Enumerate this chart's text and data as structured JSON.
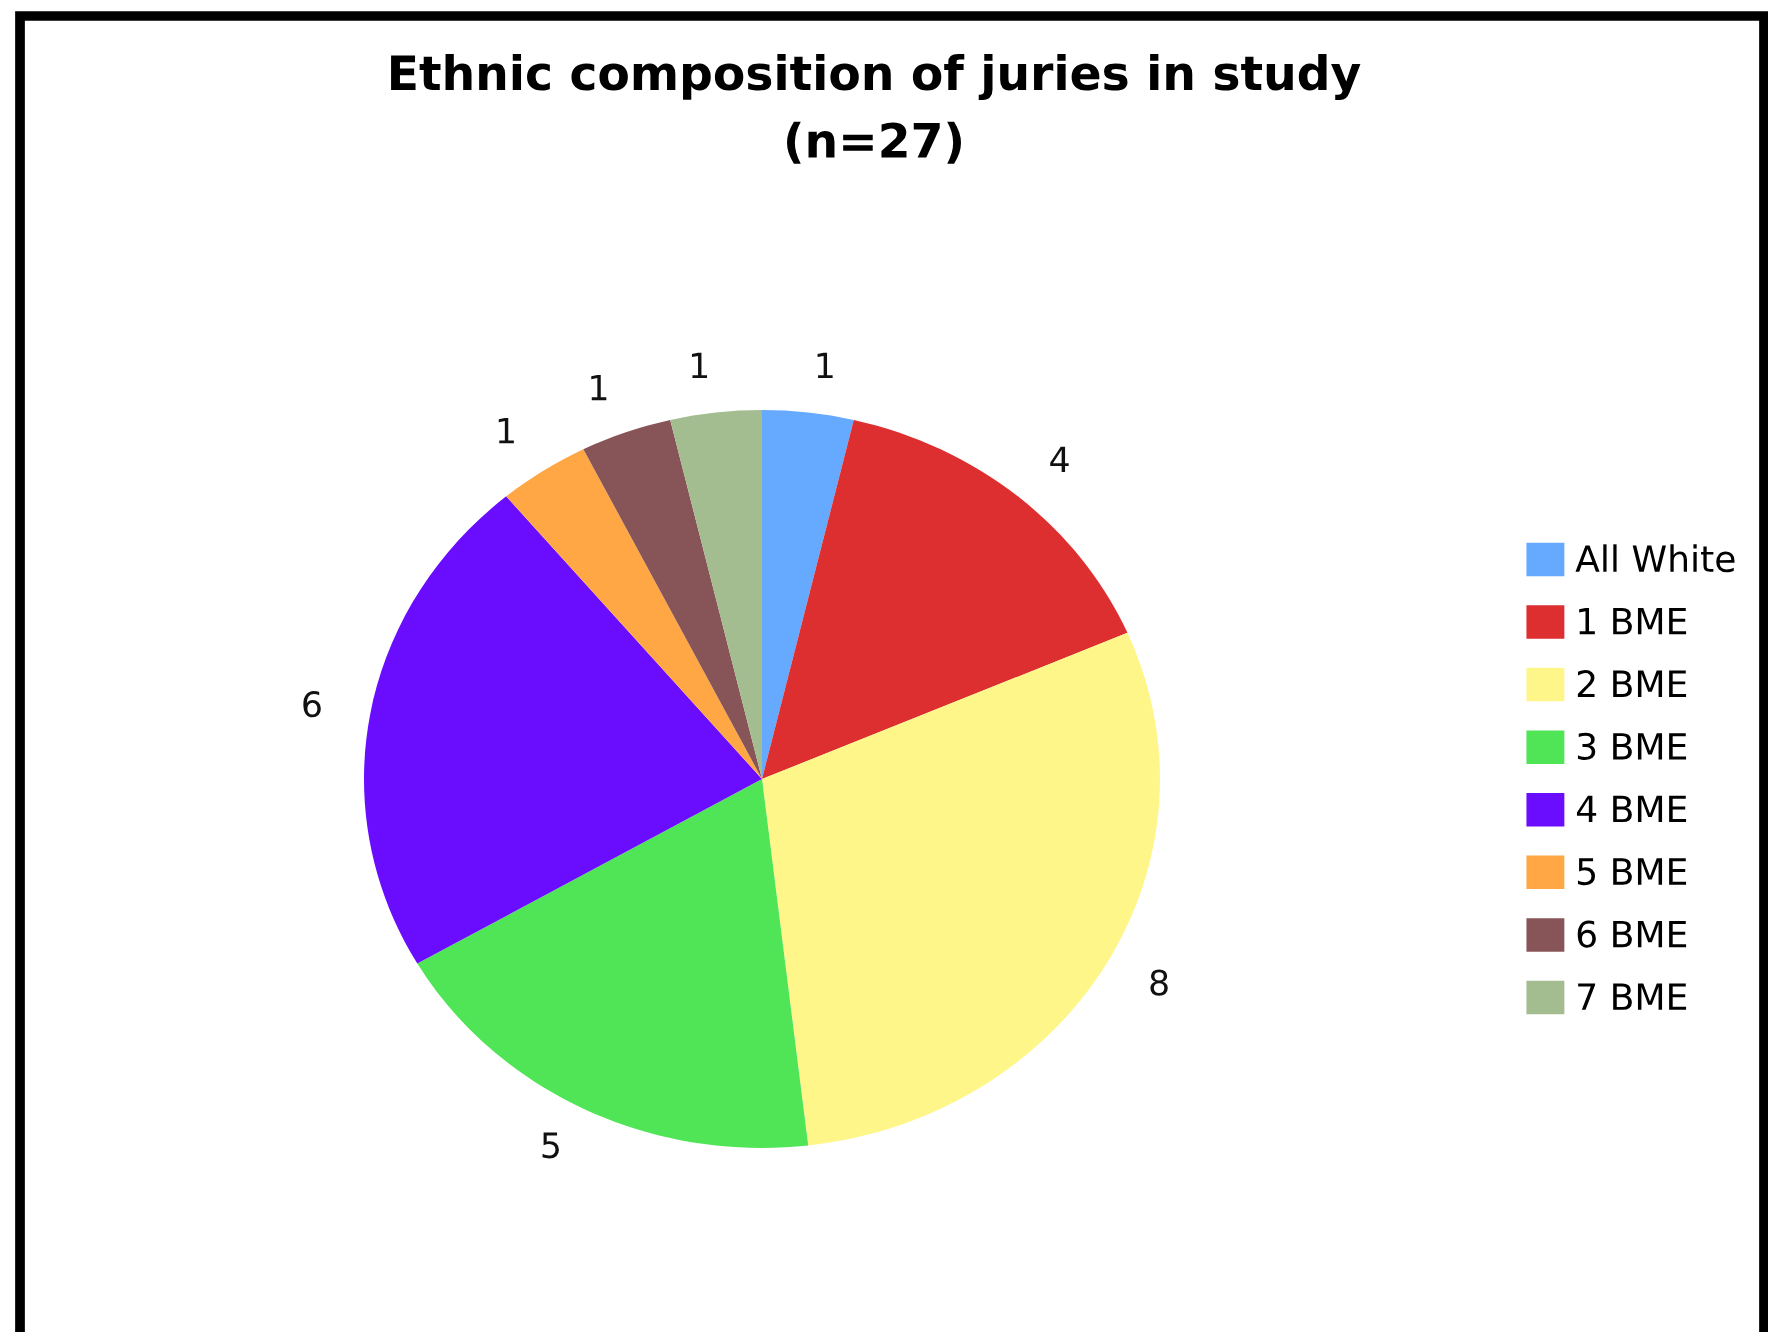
{
  "chart_data": {
    "type": "pie",
    "title": "Ethnic composition of juries in study\n(n=27)",
    "categories": [
      "All White",
      "1 BME",
      "2 BME",
      "3 BME",
      "4 BME",
      "5 BME",
      "6 BME",
      "7 BME"
    ],
    "values": [
      1,
      4,
      8,
      5,
      6,
      1,
      1,
      1
    ],
    "colors": [
      "#66aaff",
      "#dd2e30",
      "#fff68a",
      "#50e457",
      "#6a0dff",
      "#ffa744",
      "#875457",
      "#a4bd90"
    ],
    "data_labels": true,
    "legend": "right"
  }
}
